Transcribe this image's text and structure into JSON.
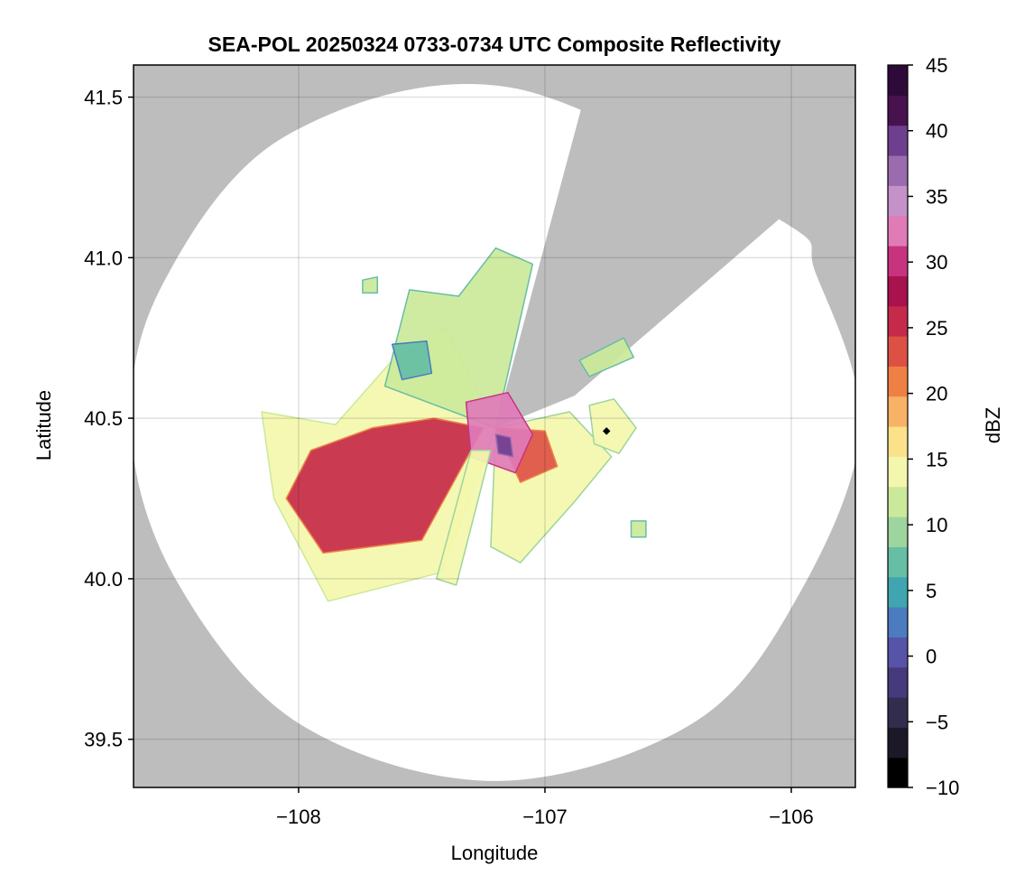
{
  "chart_data": {
    "type": "heatmap",
    "title": "SEA-POL 20250324 0733-0734 UTC Composite Reflectivity",
    "xlabel": "Longitude",
    "ylabel": "Latitude",
    "xlim": [
      -108.67,
      -105.74
    ],
    "ylim": [
      39.35,
      41.6
    ],
    "xticks": [
      -108,
      -107,
      -106
    ],
    "xtick_labels": [
      "−108",
      "−107",
      "−106"
    ],
    "yticks": [
      39.5,
      40.0,
      40.5,
      41.0,
      41.5
    ],
    "ytick_labels": [
      "39.5",
      "40.0",
      "40.5",
      "41.0",
      "41.5"
    ],
    "grid": true,
    "no_data_color": "#bdbdbd",
    "radar_center": {
      "lon": -107.2,
      "lat": 40.47
    },
    "marker": {
      "lon": -106.75,
      "lat": 40.46
    },
    "coverage_edge_points": [
      [
        -107.14,
        41.53
      ],
      [
        -108.05,
        41.38
      ],
      [
        -108.55,
        40.92
      ],
      [
        -108.68,
        40.47
      ],
      [
        -108.5,
        40.0
      ],
      [
        -108.0,
        39.55
      ],
      [
        -107.2,
        39.37
      ],
      [
        -106.4,
        39.55
      ],
      [
        -105.97,
        39.95
      ],
      [
        -105.72,
        40.47
      ],
      [
        -105.9,
        40.95
      ],
      [
        -106.05,
        41.12
      ]
    ],
    "blocked_sector_vertices": [
      [
        -107.2,
        40.47
      ],
      [
        -106.83,
        41.53
      ],
      [
        -106.05,
        41.12
      ],
      [
        -106.88,
        40.57
      ]
    ],
    "colorbar": {
      "label": "dBZ",
      "min": -10,
      "max": 45,
      "ticks": [
        -10,
        -5,
        0,
        5,
        10,
        15,
        20,
        25,
        30,
        35,
        40,
        45
      ],
      "tick_labels": [
        "−10",
        "−5",
        "0",
        "5",
        "10",
        "15",
        "20",
        "25",
        "30",
        "35",
        "40",
        "45"
      ],
      "colormap": "Spectral_r",
      "colors": [
        "#000000",
        "#1c1828",
        "#322c4e",
        "#463a7c",
        "#5653a8",
        "#4a7cbf",
        "#3fa5b0",
        "#66bea5",
        "#9ed49d",
        "#cbe99a",
        "#f3f7ad",
        "#fce18b",
        "#f7b265",
        "#ef8045",
        "#dd5145",
        "#c52a4a",
        "#a8124d",
        "#c8337f",
        "#e07bb8",
        "#c591c9",
        "#9b6bb0",
        "#6e3f8f",
        "#48124e",
        "#2e0a3a"
      ]
    },
    "echo_regions": [
      {
        "name": "west sector",
        "dbz": 15,
        "polygon": [
          [
            -108.15,
            40.52
          ],
          [
            -107.85,
            40.48
          ],
          [
            -107.62,
            40.68
          ],
          [
            -107.4,
            40.78
          ],
          [
            -107.2,
            40.47
          ],
          [
            -107.42,
            40.02
          ],
          [
            -107.88,
            39.93
          ],
          [
            -108.1,
            40.25
          ]
        ]
      },
      {
        "name": "west core",
        "dbz": 25,
        "polygon": [
          [
            -107.95,
            40.4
          ],
          [
            -107.7,
            40.47
          ],
          [
            -107.45,
            40.5
          ],
          [
            -107.25,
            40.47
          ],
          [
            -107.5,
            40.12
          ],
          [
            -107.9,
            40.08
          ],
          [
            -108.05,
            40.25
          ]
        ]
      },
      {
        "name": "north sector",
        "dbz": 12,
        "polygon": [
          [
            -107.65,
            40.6
          ],
          [
            -107.55,
            40.9
          ],
          [
            -107.35,
            40.88
          ],
          [
            -107.2,
            41.03
          ],
          [
            -107.05,
            40.98
          ],
          [
            -107.2,
            40.47
          ]
        ]
      },
      {
        "name": "northwest cell",
        "dbz": 7,
        "polygon": [
          [
            -107.62,
            40.73
          ],
          [
            -107.48,
            40.74
          ],
          [
            -107.46,
            40.64
          ],
          [
            -107.58,
            40.62
          ]
        ]
      },
      {
        "name": "east sector",
        "dbz": 14,
        "polygon": [
          [
            -107.2,
            40.47
          ],
          [
            -106.9,
            40.52
          ],
          [
            -106.73,
            40.38
          ],
          [
            -106.88,
            40.24
          ],
          [
            -107.1,
            40.05
          ],
          [
            -107.22,
            40.1
          ]
        ]
      },
      {
        "name": "east core",
        "dbz": 24,
        "polygon": [
          [
            -107.2,
            40.47
          ],
          [
            -107.0,
            40.46
          ],
          [
            -106.95,
            40.35
          ],
          [
            -107.1,
            40.3
          ]
        ]
      },
      {
        "name": "center core",
        "dbz": 33,
        "polygon": [
          [
            -107.32,
            40.55
          ],
          [
            -107.15,
            40.58
          ],
          [
            -107.05,
            40.45
          ],
          [
            -107.12,
            40.33
          ],
          [
            -107.3,
            40.38
          ]
        ]
      },
      {
        "name": "peak",
        "dbz": 40,
        "polygon": [
          [
            -107.2,
            40.45
          ],
          [
            -107.14,
            40.44
          ],
          [
            -107.13,
            40.38
          ],
          [
            -107.19,
            40.39
          ]
        ]
      },
      {
        "name": "east cell",
        "dbz": 13,
        "polygon": [
          [
            -106.82,
            40.54
          ],
          [
            -106.72,
            40.56
          ],
          [
            -106.63,
            40.47
          ],
          [
            -106.7,
            40.39
          ],
          [
            -106.8,
            40.42
          ]
        ]
      },
      {
        "name": "northeast streak",
        "dbz": 12,
        "polygon": [
          [
            -106.86,
            40.68
          ],
          [
            -106.68,
            40.75
          ],
          [
            -106.64,
            40.69
          ],
          [
            -106.82,
            40.63
          ]
        ]
      },
      {
        "name": "south spoke",
        "dbz": 14,
        "polygon": [
          [
            -107.3,
            40.4
          ],
          [
            -107.22,
            40.4
          ],
          [
            -107.36,
            39.98
          ],
          [
            -107.44,
            40.0
          ]
        ]
      },
      {
        "name": "isolated cell 1",
        "dbz": 12,
        "polygon": [
          [
            -107.74,
            40.93
          ],
          [
            -107.68,
            40.94
          ],
          [
            -107.68,
            40.89
          ],
          [
            -107.74,
            40.89
          ]
        ]
      },
      {
        "name": "isolated cell 2",
        "dbz": 12,
        "polygon": [
          [
            -106.65,
            40.18
          ],
          [
            -106.59,
            40.18
          ],
          [
            -106.59,
            40.13
          ],
          [
            -106.65,
            40.13
          ]
        ]
      }
    ]
  }
}
